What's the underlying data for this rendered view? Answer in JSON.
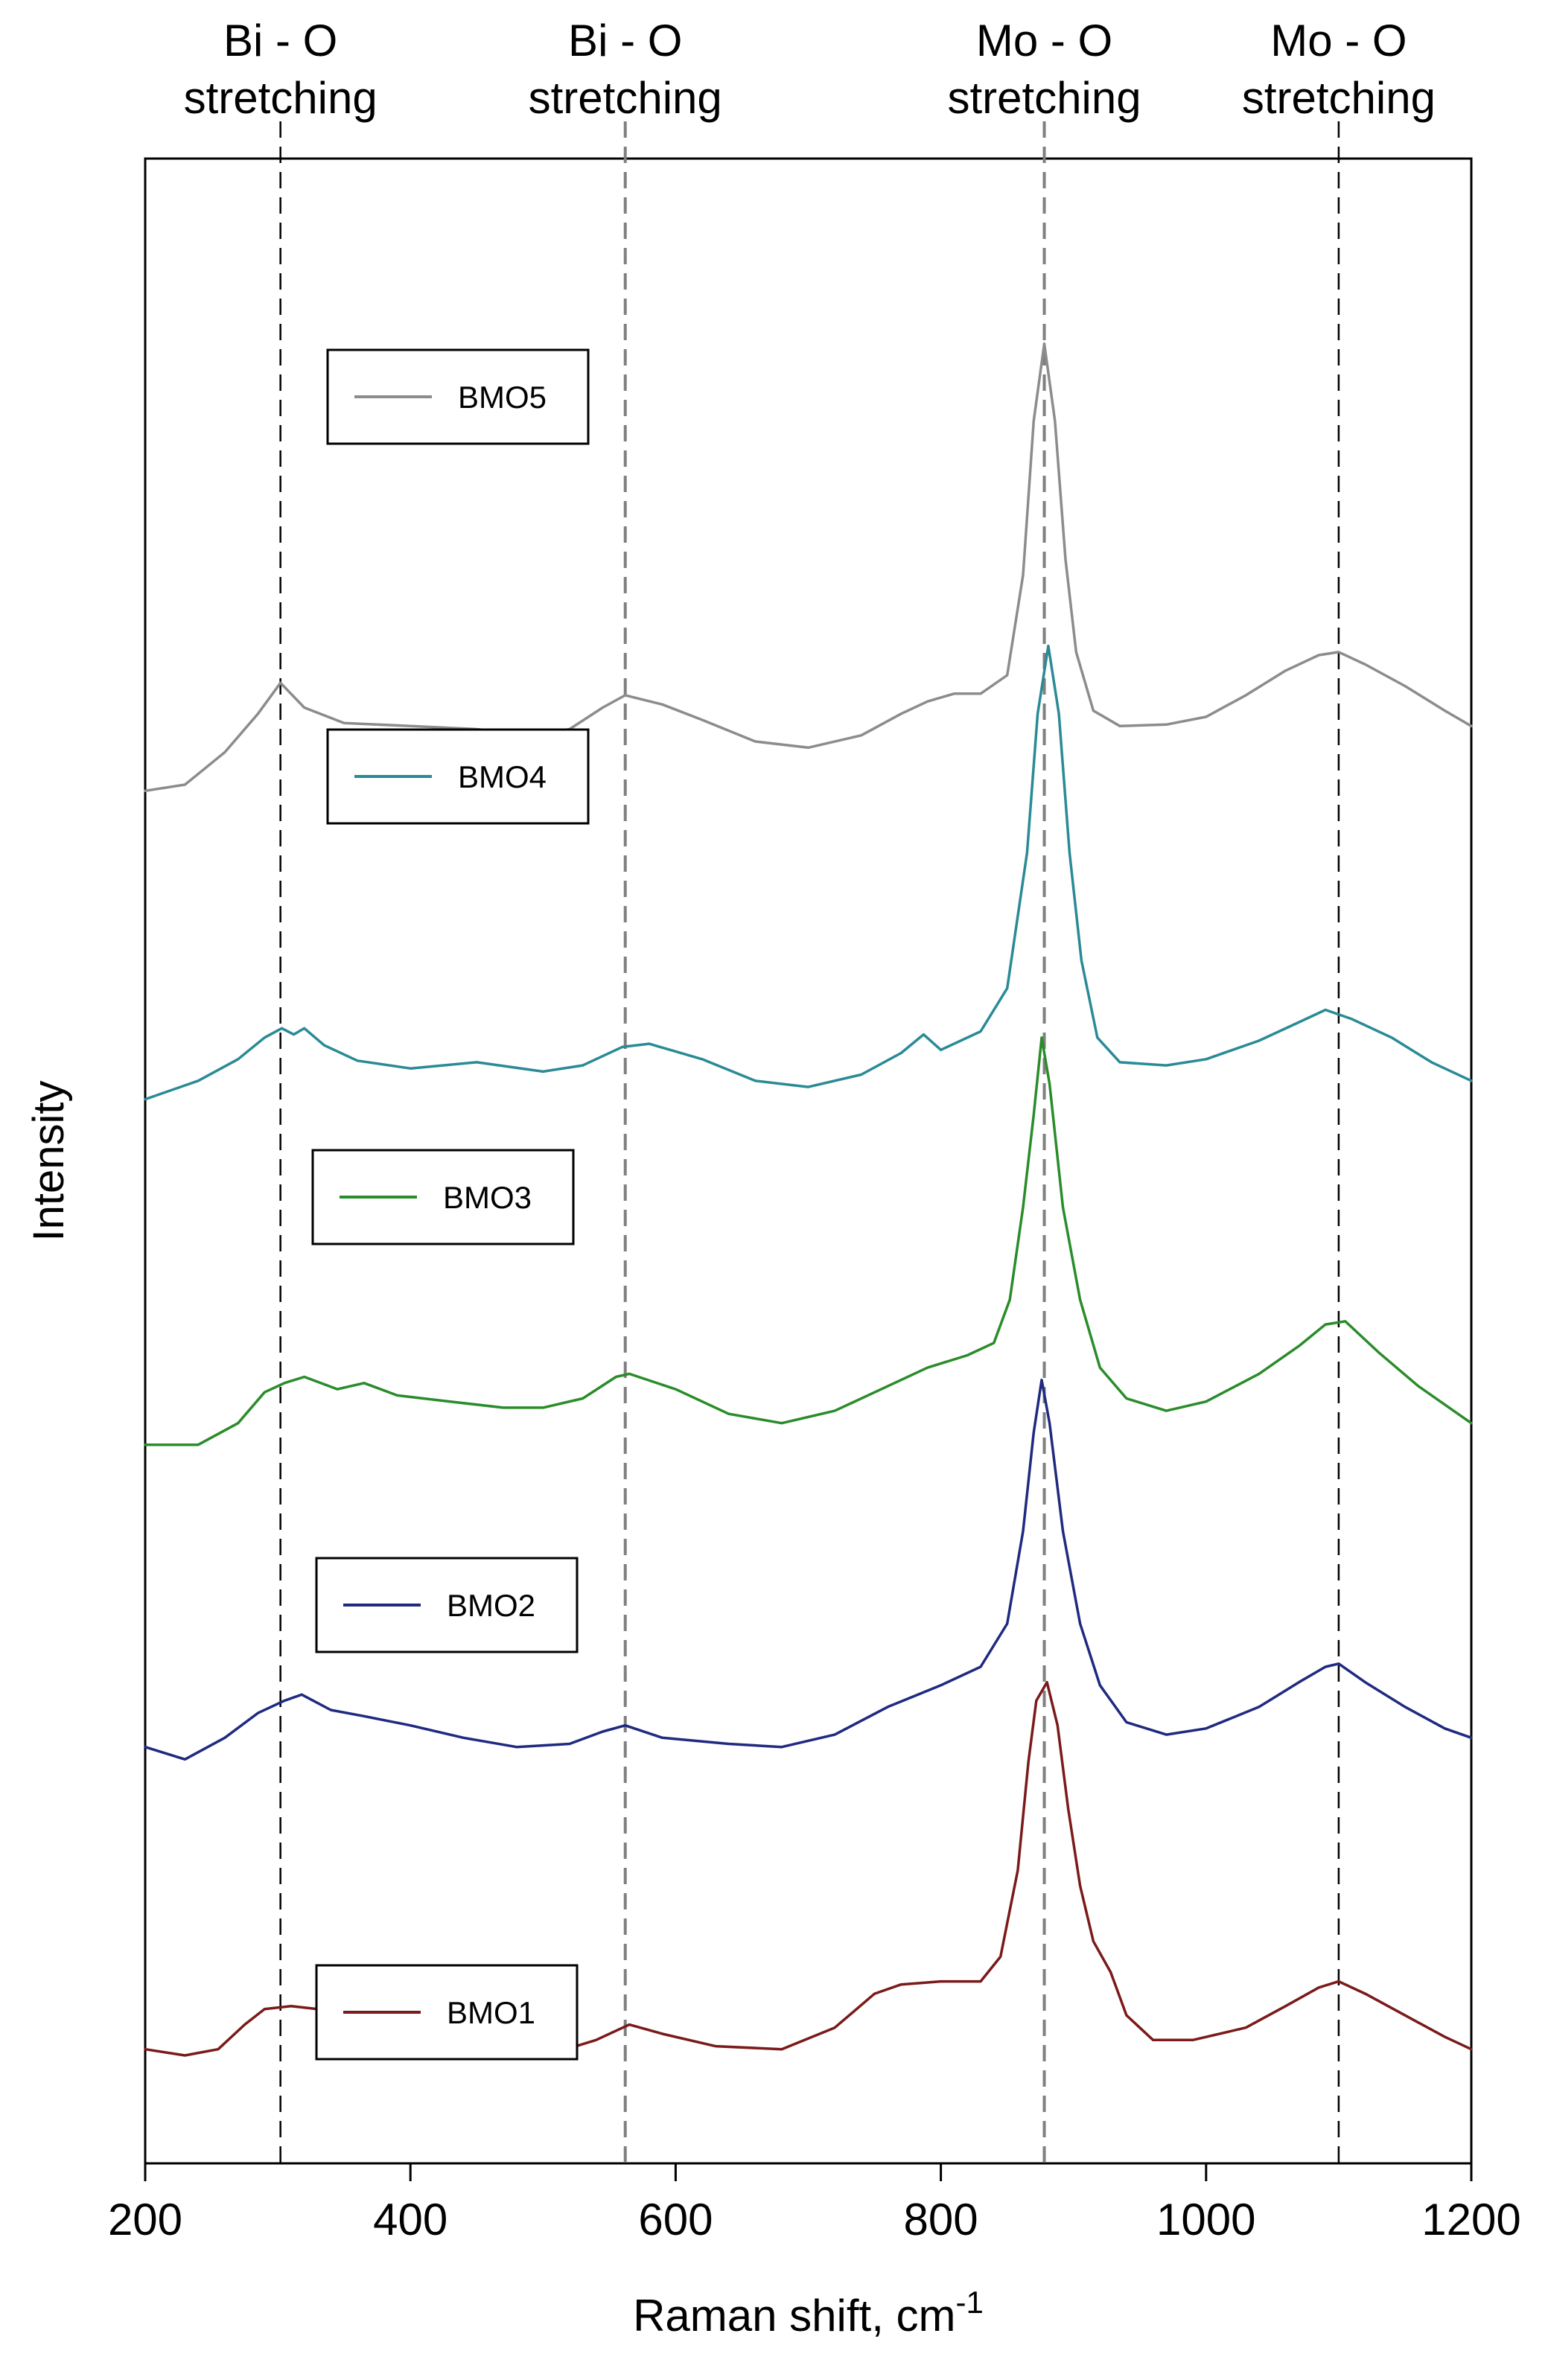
{
  "chart_data": {
    "type": "line",
    "title": "",
    "xlabel": "Raman shift, cm",
    "xlabel_superscript": "-1",
    "ylabel": "Intensity",
    "xlim": [
      200,
      1200
    ],
    "xticks": [
      "200",
      "400",
      "600",
      "800",
      "1000",
      "1200"
    ],
    "yticks": [],
    "grid": false,
    "y_units": "arbitrary (stacked, offset traces)",
    "annotations": [
      {
        "line1": "Bi - O",
        "line2": "stretching",
        "x": 302,
        "line_color": "#000000"
      },
      {
        "line1": "Bi - O",
        "line2": "stretching",
        "x": 562,
        "line_color": "#808080"
      },
      {
        "line1": "Mo - O",
        "line2": "stretching",
        "x": 878,
        "line_color": "#808080"
      },
      {
        "line1": "Mo - O",
        "line2": "stretching",
        "x": 1100,
        "line_color": "#000000"
      }
    ],
    "series": [
      {
        "name": "BMO5",
        "color": "#8c8c8c",
        "points": [
          [
            200,
            7.7
          ],
          [
            230,
            7.74
          ],
          [
            260,
            7.95
          ],
          [
            285,
            8.2
          ],
          [
            302,
            8.4
          ],
          [
            320,
            8.24
          ],
          [
            350,
            8.14
          ],
          [
            400,
            8.12
          ],
          [
            450,
            8.1
          ],
          [
            490,
            8.06
          ],
          [
            520,
            8.1
          ],
          [
            545,
            8.24
          ],
          [
            562,
            8.32
          ],
          [
            590,
            8.26
          ],
          [
            620,
            8.16
          ],
          [
            660,
            8.02
          ],
          [
            700,
            7.98
          ],
          [
            740,
            8.06
          ],
          [
            770,
            8.2
          ],
          [
            790,
            8.28
          ],
          [
            810,
            8.33
          ],
          [
            830,
            8.33
          ],
          [
            850,
            8.45
          ],
          [
            862,
            9.1
          ],
          [
            870,
            10.1
          ],
          [
            878,
            10.6
          ],
          [
            886,
            10.1
          ],
          [
            894,
            9.2
          ],
          [
            902,
            8.6
          ],
          [
            915,
            8.22
          ],
          [
            935,
            8.12
          ],
          [
            970,
            8.13
          ],
          [
            1000,
            8.18
          ],
          [
            1030,
            8.32
          ],
          [
            1060,
            8.48
          ],
          [
            1085,
            8.58
          ],
          [
            1100,
            8.6
          ],
          [
            1120,
            8.52
          ],
          [
            1150,
            8.38
          ],
          [
            1180,
            8.22
          ],
          [
            1200,
            8.12
          ]
        ]
      },
      {
        "name": "BMO4",
        "color": "#2a8a96",
        "points": [
          [
            200,
            5.7
          ],
          [
            240,
            5.82
          ],
          [
            270,
            5.96
          ],
          [
            290,
            6.1
          ],
          [
            303,
            6.16
          ],
          [
            312,
            6.12
          ],
          [
            320,
            6.16
          ],
          [
            335,
            6.05
          ],
          [
            360,
            5.95
          ],
          [
            400,
            5.9
          ],
          [
            450,
            5.94
          ],
          [
            500,
            5.88
          ],
          [
            530,
            5.92
          ],
          [
            560,
            6.04
          ],
          [
            580,
            6.06
          ],
          [
            620,
            5.96
          ],
          [
            660,
            5.82
          ],
          [
            700,
            5.78
          ],
          [
            740,
            5.86
          ],
          [
            770,
            6.0
          ],
          [
            787,
            6.12
          ],
          [
            800,
            6.02
          ],
          [
            830,
            6.14
          ],
          [
            850,
            6.42
          ],
          [
            865,
            7.3
          ],
          [
            873,
            8.2
          ],
          [
            881,
            8.64
          ],
          [
            889,
            8.2
          ],
          [
            897,
            7.3
          ],
          [
            906,
            6.6
          ],
          [
            918,
            6.1
          ],
          [
            935,
            5.94
          ],
          [
            970,
            5.92
          ],
          [
            1000,
            5.96
          ],
          [
            1040,
            6.08
          ],
          [
            1070,
            6.2
          ],
          [
            1090,
            6.28
          ],
          [
            1110,
            6.22
          ],
          [
            1140,
            6.1
          ],
          [
            1170,
            5.94
          ],
          [
            1200,
            5.82
          ]
        ]
      },
      {
        "name": "BMO3",
        "color": "#2a8c2a",
        "points": [
          [
            200,
            3.46
          ],
          [
            240,
            3.46
          ],
          [
            270,
            3.6
          ],
          [
            290,
            3.8
          ],
          [
            305,
            3.86
          ],
          [
            320,
            3.9
          ],
          [
            345,
            3.82
          ],
          [
            365,
            3.86
          ],
          [
            390,
            3.78
          ],
          [
            430,
            3.74
          ],
          [
            470,
            3.7
          ],
          [
            500,
            3.7
          ],
          [
            530,
            3.76
          ],
          [
            555,
            3.9
          ],
          [
            565,
            3.92
          ],
          [
            600,
            3.82
          ],
          [
            640,
            3.66
          ],
          [
            680,
            3.6
          ],
          [
            720,
            3.68
          ],
          [
            760,
            3.84
          ],
          [
            790,
            3.96
          ],
          [
            820,
            4.04
          ],
          [
            840,
            4.12
          ],
          [
            852,
            4.4
          ],
          [
            862,
            5.0
          ],
          [
            870,
            5.6
          ],
          [
            876,
            6.1
          ],
          [
            882,
            5.8
          ],
          [
            892,
            5.0
          ],
          [
            905,
            4.4
          ],
          [
            920,
            3.96
          ],
          [
            940,
            3.76
          ],
          [
            970,
            3.68
          ],
          [
            1000,
            3.74
          ],
          [
            1040,
            3.92
          ],
          [
            1070,
            4.1
          ],
          [
            1090,
            4.24
          ],
          [
            1105,
            4.26
          ],
          [
            1130,
            4.06
          ],
          [
            1160,
            3.84
          ],
          [
            1200,
            3.6
          ]
        ]
      },
      {
        "name": "BMO2",
        "color": "#1f2a80",
        "points": [
          [
            200,
            1.5
          ],
          [
            230,
            1.42
          ],
          [
            260,
            1.56
          ],
          [
            285,
            1.72
          ],
          [
            305,
            1.8
          ],
          [
            318,
            1.84
          ],
          [
            340,
            1.74
          ],
          [
            365,
            1.7
          ],
          [
            400,
            1.64
          ],
          [
            440,
            1.56
          ],
          [
            480,
            1.5
          ],
          [
            520,
            1.52
          ],
          [
            545,
            1.6
          ],
          [
            562,
            1.64
          ],
          [
            590,
            1.56
          ],
          [
            640,
            1.52
          ],
          [
            680,
            1.5
          ],
          [
            720,
            1.58
          ],
          [
            760,
            1.76
          ],
          [
            800,
            1.9
          ],
          [
            830,
            2.02
          ],
          [
            850,
            2.3
          ],
          [
            862,
            2.9
          ],
          [
            870,
            3.54
          ],
          [
            876,
            3.88
          ],
          [
            882,
            3.6
          ],
          [
            892,
            2.9
          ],
          [
            905,
            2.3
          ],
          [
            920,
            1.9
          ],
          [
            940,
            1.66
          ],
          [
            970,
            1.58
          ],
          [
            1000,
            1.62
          ],
          [
            1040,
            1.76
          ],
          [
            1070,
            1.92
          ],
          [
            1090,
            2.02
          ],
          [
            1100,
            2.04
          ],
          [
            1120,
            1.92
          ],
          [
            1150,
            1.76
          ],
          [
            1180,
            1.62
          ],
          [
            1200,
            1.56
          ]
        ]
      },
      {
        "name": "BMO1",
        "color": "#7a1a1a",
        "points": [
          [
            200,
            -0.46
          ],
          [
            230,
            -0.5
          ],
          [
            255,
            -0.46
          ],
          [
            275,
            -0.3
          ],
          [
            290,
            -0.2
          ],
          [
            310,
            -0.18
          ],
          [
            330,
            -0.2
          ],
          [
            350,
            -0.26
          ],
          [
            365,
            -0.2
          ],
          [
            390,
            -0.32
          ],
          [
            430,
            -0.4
          ],
          [
            470,
            -0.44
          ],
          [
            510,
            -0.48
          ],
          [
            540,
            -0.4
          ],
          [
            565,
            -0.3
          ],
          [
            590,
            -0.36
          ],
          [
            630,
            -0.44
          ],
          [
            680,
            -0.46
          ],
          [
            720,
            -0.32
          ],
          [
            750,
            -0.1
          ],
          [
            770,
            -0.04
          ],
          [
            800,
            -0.02
          ],
          [
            830,
            -0.02
          ],
          [
            845,
            0.14
          ],
          [
            858,
            0.7
          ],
          [
            866,
            1.4
          ],
          [
            872,
            1.8
          ],
          [
            880,
            1.92
          ],
          [
            888,
            1.64
          ],
          [
            896,
            1.1
          ],
          [
            905,
            0.6
          ],
          [
            915,
            0.24
          ],
          [
            928,
            0.04
          ],
          [
            940,
            -0.24
          ],
          [
            960,
            -0.4
          ],
          [
            990,
            -0.4
          ],
          [
            1030,
            -0.32
          ],
          [
            1060,
            -0.18
          ],
          [
            1085,
            -0.06
          ],
          [
            1100,
            -0.02
          ],
          [
            1120,
            -0.1
          ],
          [
            1150,
            -0.24
          ],
          [
            1180,
            -0.38
          ],
          [
            1200,
            -0.46
          ]
        ]
      }
    ]
  }
}
